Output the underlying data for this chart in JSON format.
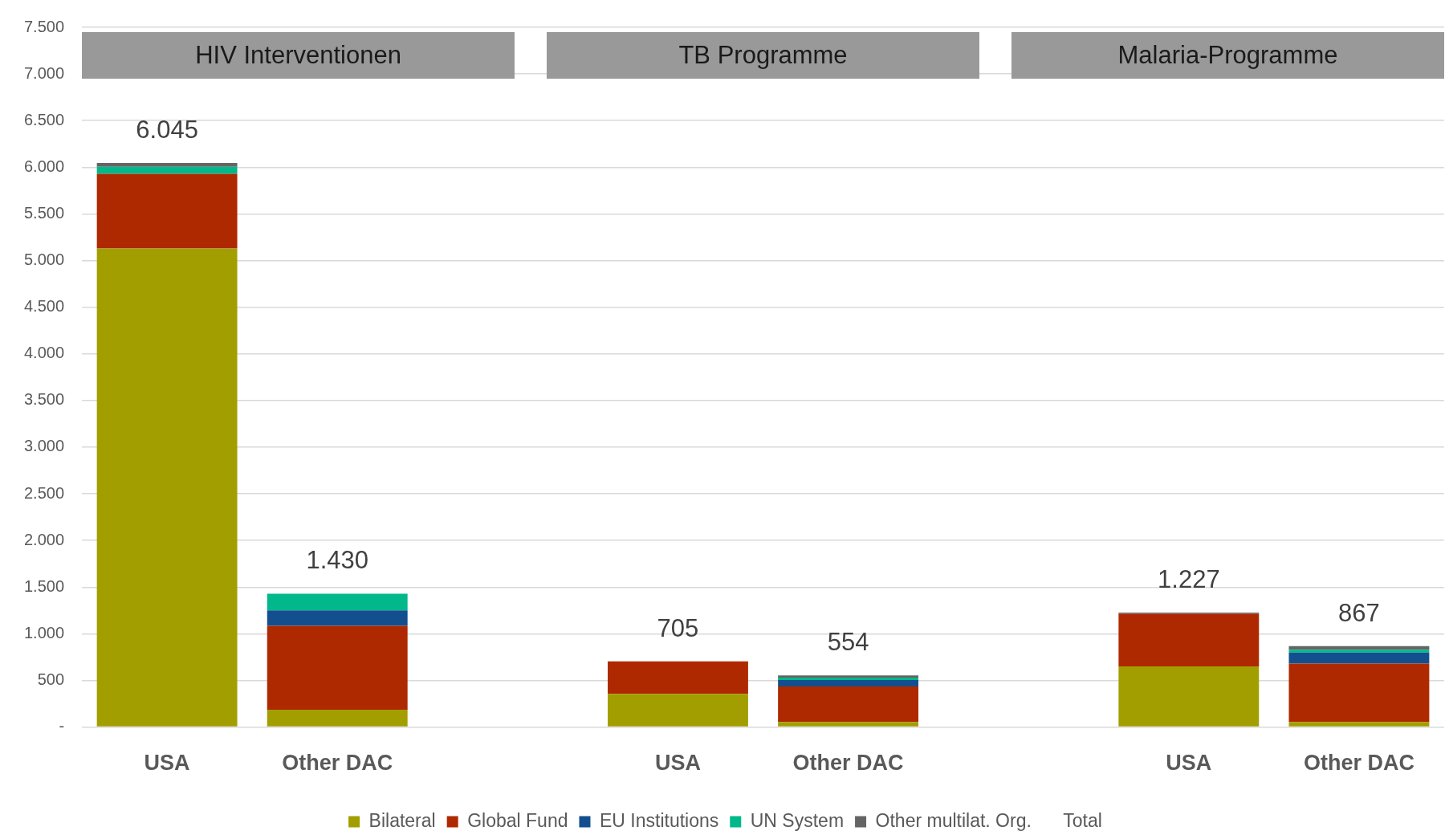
{
  "chart_data": {
    "type": "bar",
    "stacked": true,
    "categories": [
      "USA",
      "Other DAC",
      null,
      "USA",
      "Other DAC",
      null,
      "USA",
      "Other DAC"
    ],
    "series": [
      {
        "name": "Bilateral",
        "color": "#a29e00",
        "values": [
          5130,
          185,
          null,
          355,
          55,
          null,
          650,
          55
        ]
      },
      {
        "name": "Global Fund",
        "color": "#ae2900",
        "values": [
          800,
          900,
          null,
          350,
          380,
          null,
          565,
          625
        ]
      },
      {
        "name": "EU Institutions",
        "color": "#134f8f",
        "values": [
          0,
          165,
          null,
          0,
          70,
          null,
          0,
          120
        ]
      },
      {
        "name": "UN System",
        "color": "#00b88a",
        "values": [
          75,
          180,
          null,
          0,
          25,
          null,
          0,
          30
        ]
      },
      {
        "name": "Other multilat. Org.",
        "color": "#656565",
        "values": [
          40,
          0,
          null,
          0,
          24,
          null,
          12,
          37
        ]
      }
    ],
    "totals": [
      "6.045",
      "1.430",
      null,
      "705",
      "554",
      null,
      "1.227",
      "867"
    ],
    "annotations": [
      "HIV Interventionen",
      "TB Programme",
      "Malaria-Programme",
      "Total"
    ],
    "ylim": [
      0,
      7500
    ],
    "yticks": [
      {
        "value": 0,
        "label": "-"
      },
      {
        "value": 500,
        "label": "500"
      },
      {
        "value": 1000,
        "label": "1.000"
      },
      {
        "value": 1500,
        "label": "1.500"
      },
      {
        "value": 2000,
        "label": "2.000"
      },
      {
        "value": 2500,
        "label": "2.500"
      },
      {
        "value": 3000,
        "label": "3.000"
      },
      {
        "value": 3500,
        "label": "3.500"
      },
      {
        "value": 4000,
        "label": "4.000"
      },
      {
        "value": 4500,
        "label": "4.500"
      },
      {
        "value": 5000,
        "label": "5.000"
      },
      {
        "value": 5500,
        "label": "5.500"
      },
      {
        "value": 6000,
        "label": "6.000"
      },
      {
        "value": 6500,
        "label": "6.500"
      },
      {
        "value": 7000,
        "label": "7.000"
      },
      {
        "value": 7500,
        "label": "7.500"
      }
    ],
    "grid": "y",
    "legend": "bottom"
  }
}
